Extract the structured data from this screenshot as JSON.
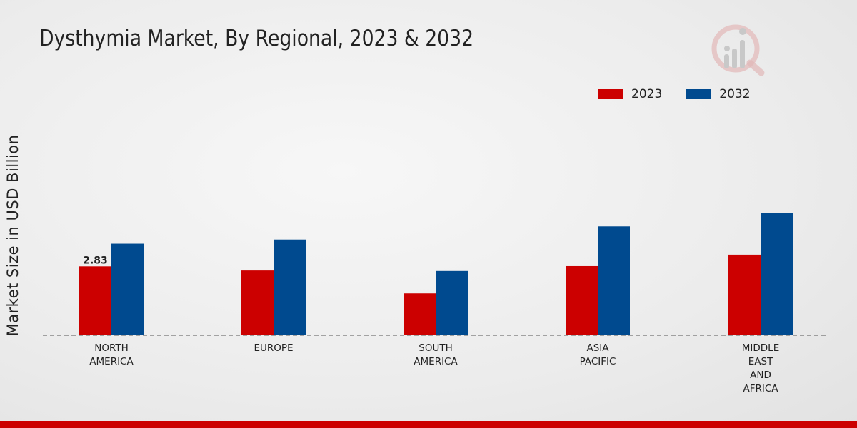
{
  "chart_data": {
    "type": "bar",
    "title": "Dysthymia Market, By Regional, 2023 & 2032",
    "xlabel": "",
    "ylabel": "Market Size in USD Billion",
    "categories": [
      "NORTH\nAMERICA",
      "EUROPE",
      "SOUTH\nAMERICA",
      "ASIA\nPACIFIC",
      "MIDDLE\nEAST\nAND\nAFRICA"
    ],
    "series": [
      {
        "name": "2023",
        "color": "#cc0000",
        "values": [
          2.83,
          2.66,
          1.72,
          2.84,
          3.31
        ]
      },
      {
        "name": "2032",
        "color": "#004a8f",
        "values": [
          3.76,
          3.93,
          2.64,
          4.47,
          5.03
        ]
      }
    ],
    "data_labels": [
      {
        "series": 0,
        "index": 0,
        "text": "2.83"
      }
    ],
    "ylim": [
      0,
      12
    ],
    "grid": false,
    "legend_position": "top-right"
  }
}
